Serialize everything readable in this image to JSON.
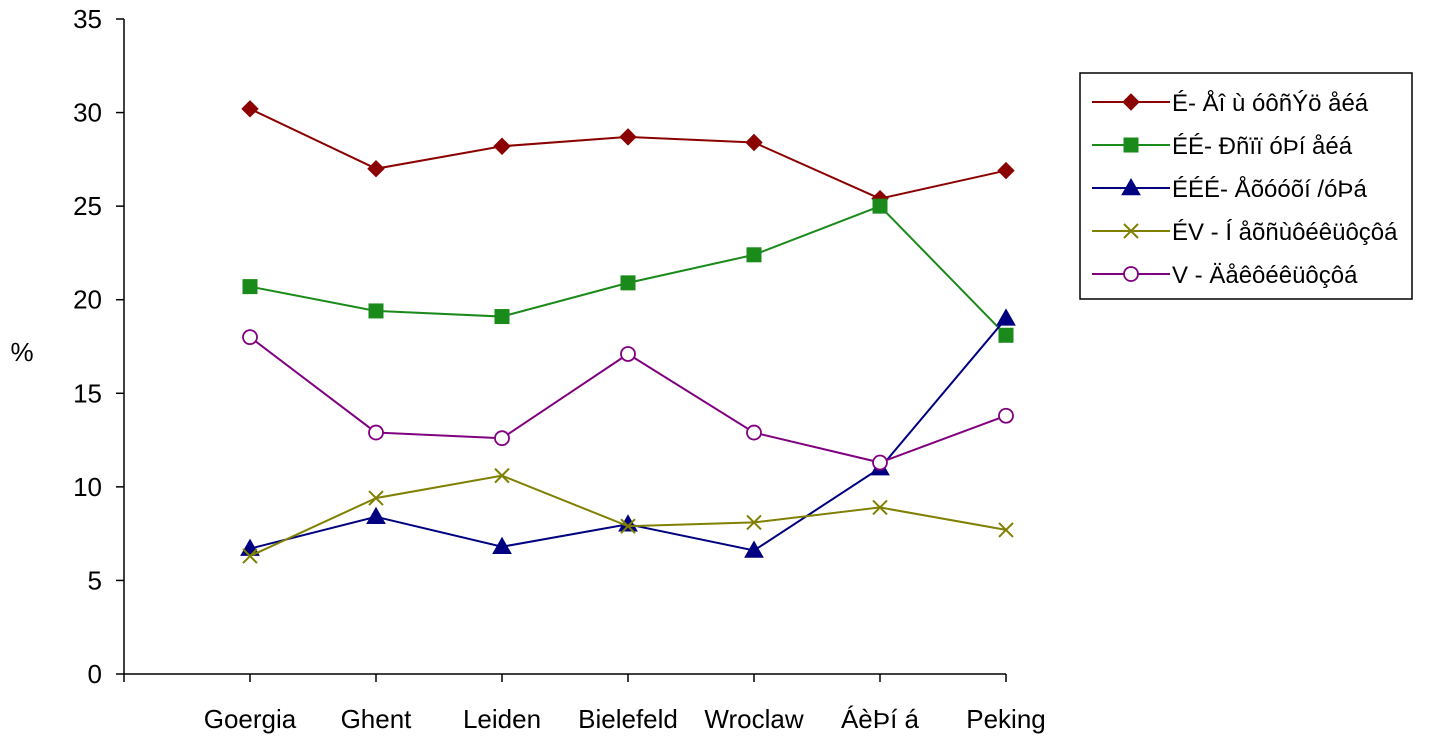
{
  "chart_data": {
    "type": "line",
    "title": "",
    "xlabel": "",
    "ylabel": "%",
    "ylim": [
      0,
      35
    ],
    "yticks": [
      0,
      5,
      10,
      15,
      20,
      25,
      30,
      35
    ],
    "grid": false,
    "legend_position": "right",
    "categories": [
      "Goergia",
      "Ghent",
      "Leiden",
      "Bielefeld",
      "Wroclaw",
      "ÁèÞí á",
      "Peking"
    ],
    "series": [
      {
        "name": "É- Åî ù óôñÝö åéá",
        "color": "#8B0000",
        "marker": "diamond",
        "values": [
          30.2,
          27.0,
          28.2,
          28.7,
          28.4,
          25.4,
          26.9
        ]
      },
      {
        "name": "ÉÉ- Ðñïï óÞí åéá",
        "color": "#1A8A1A",
        "marker": "square",
        "values": [
          20.7,
          19.4,
          19.1,
          20.9,
          22.4,
          25.0,
          18.1
        ]
      },
      {
        "name": "ÉÉÉ- Åõóóõí /óÞá",
        "color": "#000080",
        "marker": "triangle",
        "values": [
          6.7,
          8.4,
          6.8,
          8.0,
          6.6,
          11.0,
          19.0
        ]
      },
      {
        "name": "ÉV - Í åõñùôéêüôçôá",
        "color": "#808000",
        "marker": "x",
        "values": [
          6.3,
          9.4,
          10.6,
          7.9,
          8.1,
          8.9,
          7.7
        ]
      },
      {
        "name": "V - Äåêôéêüôçôá",
        "color": "#800080",
        "marker": "circle",
        "values": [
          18.0,
          12.9,
          12.6,
          17.1,
          12.9,
          11.3,
          13.8
        ]
      }
    ]
  }
}
